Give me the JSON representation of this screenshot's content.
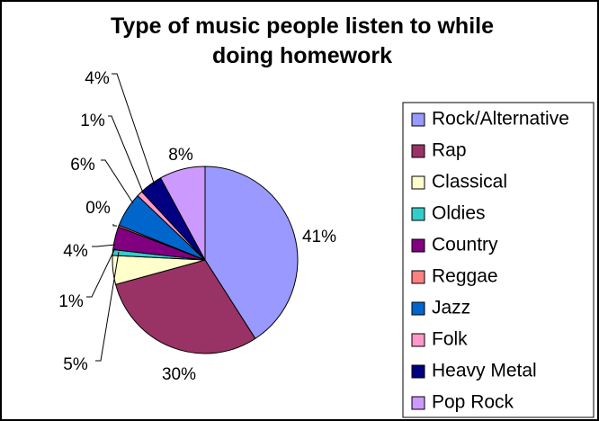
{
  "chart_data": {
    "type": "pie",
    "title": "Type of music people listen to while doing homework",
    "title_lines": [
      "Type of music people listen to while",
      "doing homework"
    ],
    "legend_position": "right",
    "slices": [
      {
        "label": "Rock/Alternative",
        "value": 41,
        "display": "41%",
        "color": "#9999ff"
      },
      {
        "label": "Rap",
        "value": 30,
        "display": "30%",
        "color": "#993366"
      },
      {
        "label": "Classical",
        "value": 5,
        "display": "5%",
        "color": "#ffffcc"
      },
      {
        "label": "Oldies",
        "value": 1,
        "display": "1%",
        "color": "#33cccc"
      },
      {
        "label": "Country",
        "value": 4,
        "display": "4%",
        "color": "#800080"
      },
      {
        "label": "Reggae",
        "value": 0.3,
        "display": "0%",
        "color": "#ff8080"
      },
      {
        "label": "Jazz",
        "value": 6,
        "display": "6%",
        "color": "#0066cc"
      },
      {
        "label": "Folk",
        "value": 1,
        "display": "1%",
        "color": "#ff99cc"
      },
      {
        "label": "Heavy Metal",
        "value": 4,
        "display": "4%",
        "color": "#000080"
      },
      {
        "label": "Pop Rock",
        "value": 8,
        "display": "8%",
        "color": "#cc99ff"
      }
    ]
  }
}
